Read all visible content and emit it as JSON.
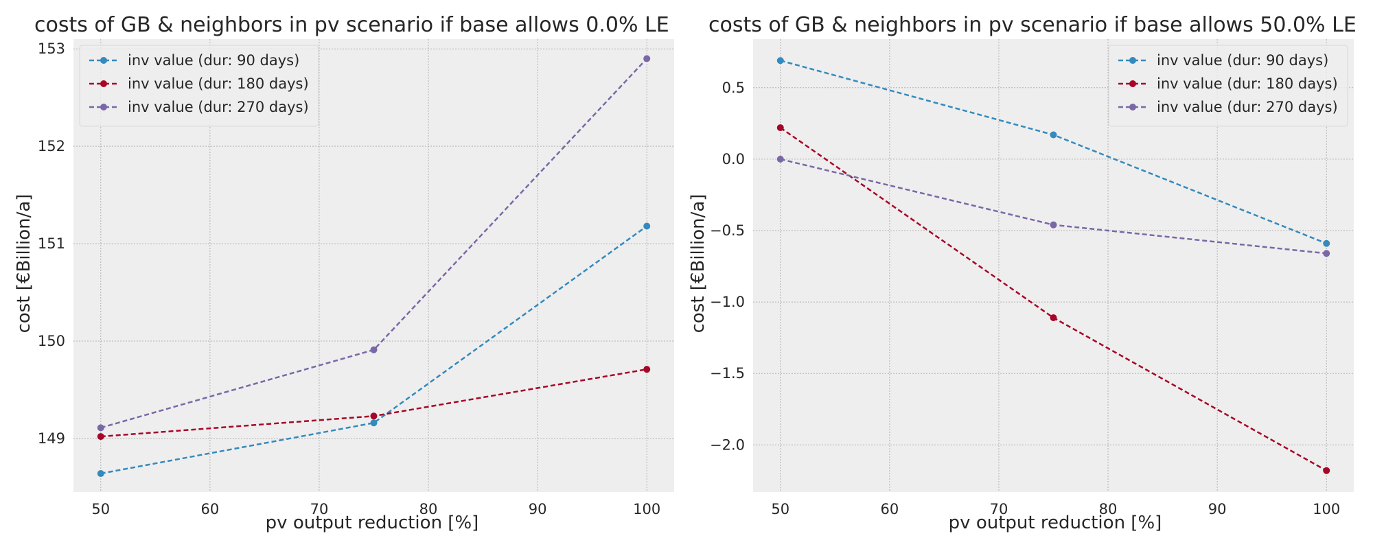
{
  "chart_data": [
    {
      "type": "line",
      "title": "costs of GB & neighbors in pv scenario if base allows 0.0% LE",
      "xlabel": "pv output reduction [%]",
      "ylabel": "cost [€Billion/a]",
      "x": [
        50,
        75,
        100
      ],
      "xlim": [
        47.5,
        102.5
      ],
      "ylim": [
        148.45,
        153.1
      ],
      "xticks": [
        50,
        60,
        70,
        80,
        90,
        100
      ],
      "yticks": [
        149,
        150,
        151,
        152,
        153
      ],
      "xtick_labels": [
        "50",
        "60",
        "70",
        "80",
        "90",
        "100"
      ],
      "ytick_labels": [
        "149",
        "150",
        "151",
        "152",
        "153"
      ],
      "grid": true,
      "legend_position": "top-left",
      "series": [
        {
          "name": "inv value (dur: 90 days)",
          "color": "#348ABD",
          "values": [
            148.64,
            149.16,
            151.18
          ]
        },
        {
          "name": "inv value (dur: 180 days)",
          "color": "#A60628",
          "values": [
            149.02,
            149.23,
            149.71
          ]
        },
        {
          "name": "inv value (dur: 270 days)",
          "color": "#7A68A6",
          "values": [
            149.11,
            149.91,
            152.9
          ]
        }
      ]
    },
    {
      "type": "line",
      "title": "costs of GB & neighbors in pv scenario if base allows 50.0% LE",
      "xlabel": "pv output reduction [%]",
      "ylabel": "cost [€Billion/a]",
      "x": [
        50,
        75,
        100
      ],
      "xlim": [
        47.5,
        102.5
      ],
      "ylim": [
        -2.33,
        0.84
      ],
      "xticks": [
        50,
        60,
        70,
        80,
        90,
        100
      ],
      "yticks": [
        -2.0,
        -1.5,
        -1.0,
        -0.5,
        0.0,
        0.5
      ],
      "xtick_labels": [
        "50",
        "60",
        "70",
        "80",
        "90",
        "100"
      ],
      "ytick_labels": [
        "−2.0",
        "−1.5",
        "−1.0",
        "−0.5",
        "0.0",
        "0.5"
      ],
      "grid": true,
      "legend_position": "top-right",
      "series": [
        {
          "name": "inv value (dur: 90 days)",
          "color": "#348ABD",
          "values": [
            0.69,
            0.17,
            -0.59
          ]
        },
        {
          "name": "inv value (dur: 180 days)",
          "color": "#A60628",
          "values": [
            0.22,
            -1.11,
            -2.18
          ]
        },
        {
          "name": "inv value (dur: 270 days)",
          "color": "#7A68A6",
          "values": [
            0.0,
            -0.46,
            -0.66
          ]
        }
      ]
    }
  ]
}
